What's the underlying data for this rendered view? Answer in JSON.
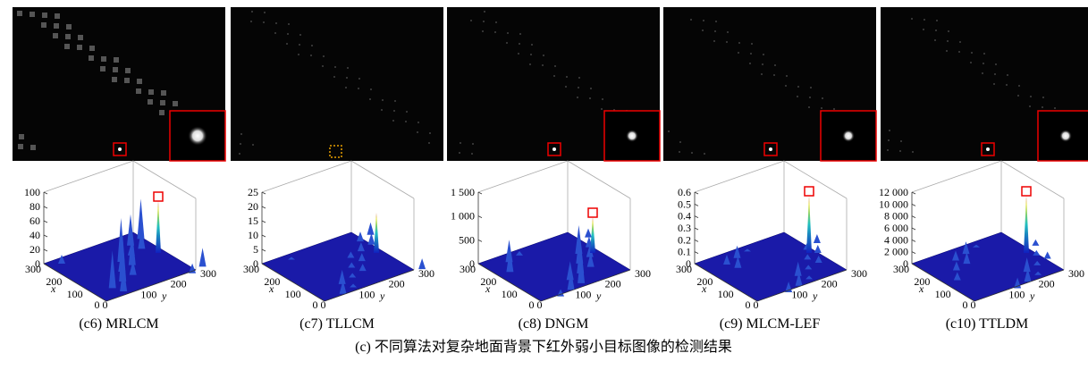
{
  "panels": [
    {
      "label": "(c6) MRLCM",
      "zticks": [
        "100",
        "80",
        "60",
        "40",
        "20",
        "0"
      ],
      "xticks": [
        "300",
        "200",
        "100"
      ],
      "yticks": [
        "100",
        "200",
        "300"
      ],
      "origin": "0 0",
      "x_label": "x",
      "y_label": "y"
    },
    {
      "label": "(c7) TLLCM",
      "zticks": [
        "25",
        "20",
        "15",
        "10",
        "5",
        "0"
      ],
      "xticks": [
        "300",
        "200",
        "100"
      ],
      "yticks": [
        "100",
        "200",
        "300"
      ],
      "origin": "0 0",
      "x_label": "x",
      "y_label": "y"
    },
    {
      "label": "(c8) DNGM",
      "zticks": [
        "1 500",
        "1 000",
        "500",
        "0"
      ],
      "xticks": [
        "300",
        "200",
        "100"
      ],
      "yticks": [
        "100",
        "200",
        "300"
      ],
      "origin": "0 0",
      "x_label": "x",
      "y_label": "y"
    },
    {
      "label": "(c9) MLCM-LEF",
      "zticks": [
        "0.6",
        "0.5",
        "0.4",
        "0.3",
        "0.2",
        "0.1",
        "0"
      ],
      "xticks": [
        "300",
        "200",
        "100"
      ],
      "yticks": [
        "100",
        "200",
        "300"
      ],
      "origin": "0 0",
      "x_label": "x",
      "y_label": "y"
    },
    {
      "label": "(c10) TTLDM",
      "zticks": [
        "12 000",
        "10 000",
        "8 000",
        "6 000",
        "4 000",
        "2 000",
        "0"
      ],
      "xticks": [
        "300",
        "200",
        "100"
      ],
      "yticks": [
        "100",
        "200",
        "300"
      ],
      "origin": "0 0",
      "x_label": "x",
      "y_label": "y"
    }
  ],
  "caption": "(c) 不同算法对复杂地面背景下红外弱小目标图像的检测结果"
}
